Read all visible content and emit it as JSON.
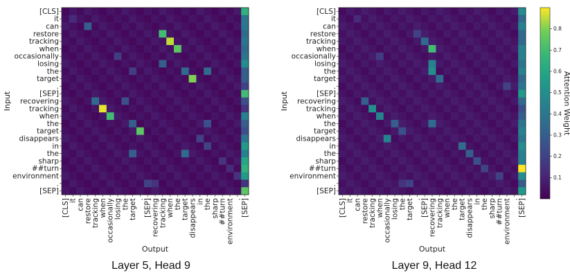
{
  "chart_data": [
    {
      "type": "heatmap",
      "caption": "Layer 5, Head 9",
      "xlabel": "Output",
      "ylabel": "Input",
      "rows": [
        "[CLS]",
        "it",
        "can",
        "restore",
        "tracking",
        "when",
        "occasionally",
        "losing",
        "the",
        "target",
        ".",
        "[SEP]",
        "recovering",
        "tracking",
        "when",
        "the",
        "target",
        "disappears",
        "in",
        "the",
        "sharp",
        "##turn",
        "environment",
        ".",
        "[SEP]"
      ],
      "cols": [
        "[CLS]",
        "it",
        "can",
        "restore",
        "tracking",
        "when",
        "occasionally",
        "losing",
        "the",
        "target",
        ".",
        "[SEP]",
        "recovering",
        "tracking",
        "when",
        "the",
        "target",
        "disappears",
        "in",
        "the",
        "sharp",
        "##turn",
        "environment",
        ".",
        "[SEP]"
      ],
      "base": 0.02,
      "last_col": [
        0.65,
        0.4,
        0.4,
        0.35,
        0.4,
        0.35,
        0.4,
        0.5,
        0.3,
        0.3,
        0.25,
        0.7,
        0.25,
        0.15,
        0.45,
        0.3,
        0.25,
        0.4,
        0.55,
        0.45,
        0.6,
        0.65,
        0.55,
        0.15,
        0.75
      ],
      "cells": [
        [
          1,
          1,
          0.12
        ],
        [
          2,
          3,
          0.3
        ],
        [
          3,
          13,
          0.7
        ],
        [
          4,
          14,
          0.85
        ],
        [
          5,
          15,
          0.75
        ],
        [
          6,
          7,
          0.18
        ],
        [
          7,
          13,
          0.3
        ],
        [
          8,
          9,
          0.18
        ],
        [
          8,
          16,
          0.35
        ],
        [
          8,
          19,
          0.35
        ],
        [
          9,
          17,
          0.8
        ],
        [
          12,
          4,
          0.35
        ],
        [
          12,
          8,
          0.25
        ],
        [
          13,
          5,
          0.88
        ],
        [
          14,
          6,
          0.7
        ],
        [
          15,
          9,
          0.3
        ],
        [
          15,
          19,
          0.25
        ],
        [
          16,
          10,
          0.75
        ],
        [
          17,
          18,
          0.2
        ],
        [
          18,
          19,
          0.2
        ],
        [
          19,
          9,
          0.3
        ],
        [
          19,
          16,
          0.35
        ],
        [
          20,
          21,
          0.15
        ],
        [
          21,
          22,
          0.12
        ],
        [
          22,
          23,
          0.15
        ],
        [
          23,
          11,
          0.2
        ],
        [
          23,
          12,
          0.15
        ],
        [
          10,
          24,
          0.2
        ]
      ]
    },
    {
      "type": "heatmap",
      "caption": "Layer 9, Head 12",
      "xlabel": "Output",
      "ylabel": "Input",
      "rows": [
        "[CLS]",
        "it",
        "can",
        "restore",
        "tracking",
        "when",
        "occasionally",
        "losing",
        "the",
        "target",
        ".",
        "[SEP]",
        "recovering",
        "tracking",
        "when",
        "the",
        "target",
        "disappears",
        "in",
        "the",
        "sharp",
        "##turn",
        "environment",
        ".",
        "[SEP]"
      ],
      "cols": [
        "[CLS]",
        "it",
        "can",
        "restore",
        "tracking",
        "when",
        "occasionally",
        "losing",
        "the",
        "target",
        ".",
        "[SEP]",
        "recovering",
        "tracking",
        "when",
        "the",
        "target",
        "disappears",
        "in",
        "the",
        "sharp",
        "##turn",
        "environment",
        ".",
        "[SEP]"
      ],
      "base": 0.03,
      "colorbar": {
        "label": "Attention Weight",
        "min": 0.0,
        "max": 0.9,
        "ticks": [
          0.1,
          0.2,
          0.3,
          0.4,
          0.5,
          0.6,
          0.7,
          0.8
        ]
      },
      "last_col": [
        0.5,
        0.35,
        0.45,
        0.35,
        0.35,
        0.45,
        0.45,
        0.4,
        0.45,
        0.35,
        0.3,
        0.55,
        0.35,
        0.25,
        0.3,
        0.4,
        0.45,
        0.4,
        0.5,
        0.45,
        0.45,
        0.9,
        0.5,
        0.3,
        0.55
      ],
      "cells": [
        [
          1,
          2,
          0.12
        ],
        [
          3,
          10,
          0.2
        ],
        [
          4,
          11,
          0.35
        ],
        [
          5,
          12,
          0.7
        ],
        [
          6,
          5,
          0.18
        ],
        [
          7,
          12,
          0.45
        ],
        [
          8,
          12,
          0.5
        ],
        [
          9,
          13,
          0.35
        ],
        [
          12,
          3,
          0.3
        ],
        [
          13,
          4,
          0.5
        ],
        [
          14,
          5,
          0.45
        ],
        [
          15,
          7,
          0.3
        ],
        [
          15,
          12,
          0.35
        ],
        [
          16,
          8,
          0.25
        ],
        [
          17,
          6,
          0.45
        ],
        [
          18,
          16,
          0.35
        ],
        [
          19,
          17,
          0.3
        ],
        [
          20,
          18,
          0.25
        ],
        [
          21,
          19,
          0.2
        ],
        [
          22,
          21,
          0.2
        ],
        [
          23,
          9,
          0.2
        ],
        [
          23,
          8,
          0.15
        ],
        [
          10,
          22,
          0.2
        ],
        [
          10,
          24,
          0.4
        ]
      ]
    }
  ]
}
